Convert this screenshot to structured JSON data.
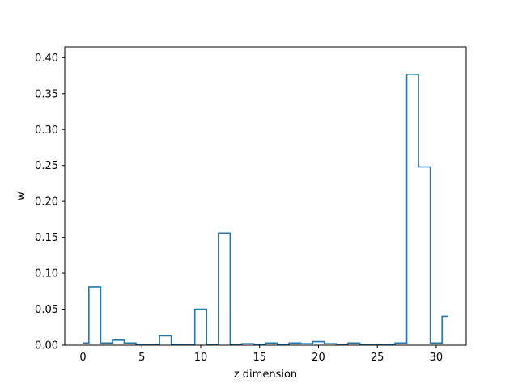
{
  "chart_data": {
    "type": "line",
    "style": "step",
    "title": "",
    "xlabel": "z dimension",
    "ylabel": "w",
    "xlim": [
      -1.55,
      32.55
    ],
    "ylim": [
      0,
      0.415
    ],
    "xticks": [
      0,
      5,
      10,
      15,
      20,
      25,
      30
    ],
    "yticks": [
      0.0,
      0.05,
      0.1,
      0.15,
      0.2,
      0.25,
      0.3,
      0.35,
      0.4
    ],
    "ytick_labels": [
      "0.00",
      "0.05",
      "0.10",
      "0.15",
      "0.20",
      "0.25",
      "0.30",
      "0.35",
      "0.40"
    ],
    "grid": false,
    "line_color": "#1f77b4",
    "series": [
      {
        "x": [
          0,
          1,
          2,
          3,
          4,
          5,
          6,
          7,
          8,
          9,
          10,
          11,
          12,
          13,
          14,
          15,
          16,
          17,
          18,
          19,
          20,
          21,
          22,
          23,
          24,
          25,
          26,
          27,
          28,
          29,
          30,
          31
        ],
        "values": [
          0.003,
          0.081,
          0.003,
          0.007,
          0.003,
          0.001,
          0.001,
          0.013,
          0.001,
          0.001,
          0.05,
          0.001,
          0.156,
          0.001,
          0.002,
          0.001,
          0.003,
          0.001,
          0.003,
          0.002,
          0.005,
          0.002,
          0.001,
          0.003,
          0.001,
          0.001,
          0.001,
          0.003,
          0.377,
          0.248,
          0.003,
          0.04
        ]
      }
    ]
  }
}
